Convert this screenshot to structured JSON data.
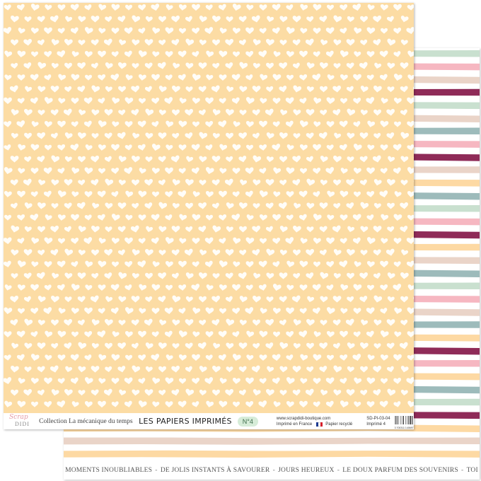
{
  "colors": {
    "front_background": "#fcdca4",
    "heart_color": "#ffffff",
    "stripe_palette": [
      "#8f2b58",
      "#fdd9a3",
      "#dfe0d6",
      "#9dbbbb",
      "#f6b7c1",
      "#c9e0cf",
      "#ead4c8"
    ]
  },
  "back_stripes": [
    {
      "color": "#c9e0cf"
    },
    {
      "color": "#f6b7c1"
    },
    {
      "color": "#ead4c8"
    },
    {
      "color": "#8f2b58"
    },
    {
      "color": "#c9e0cf"
    },
    {
      "color": "#ead4c8"
    },
    {
      "color": "#9dbbbb"
    },
    {
      "color": "#f6b7c1"
    },
    {
      "color": "#8f2b58"
    },
    {
      "color": "#ead4c8"
    },
    {
      "color": "#fdd9a3"
    },
    {
      "color": "#9dbbbb"
    },
    {
      "color": "#c9e0cf"
    },
    {
      "color": "#f6b7c1"
    },
    {
      "color": "#8f2b58"
    },
    {
      "color": "#fdd9a3"
    },
    {
      "color": "#ead4c8"
    },
    {
      "color": "#9dbbbb"
    },
    {
      "color": "#c9e0cf"
    },
    {
      "color": "#f6b7c1"
    },
    {
      "color": "#ead4c8"
    },
    {
      "color": "#9dbbbb"
    },
    {
      "color": "#fdd9a3"
    },
    {
      "color": "#8f2b58"
    },
    {
      "color": "#f6b7c1"
    },
    {
      "color": "#fdd9a3"
    },
    {
      "color": "#9dbbbb"
    },
    {
      "color": "#c9e0cf"
    },
    {
      "color": "#8f2b58"
    },
    {
      "color": "#fdd9a3"
    },
    {
      "color": "#ead4c8"
    },
    {
      "color": "#fdd9a3"
    }
  ],
  "logo": {
    "line1": "Scrap",
    "line2": "DIDI"
  },
  "front_footer": {
    "collection": "Collection La mécanique du temps",
    "series_title": "LES PAPIERS IMPRIMÉS",
    "number": "N°4",
    "website": "www.scrapdidi-boutique.com",
    "made_in": "Imprimé en France",
    "recycled": "Papier recyclé",
    "reference": "SD-PI-03-04",
    "imprime": "Imprimé 4",
    "barcode_number": "3 700311 140697"
  },
  "back_caption": {
    "items": [
      "MOMENTS INOUBLIABLES",
      "DE JOLIS INSTANTS À SAVOURER",
      "JOURS HEUREUX",
      "LE DOUX PARFUM DES SOUVENIRS",
      "TOI"
    ],
    "separator": "-"
  }
}
